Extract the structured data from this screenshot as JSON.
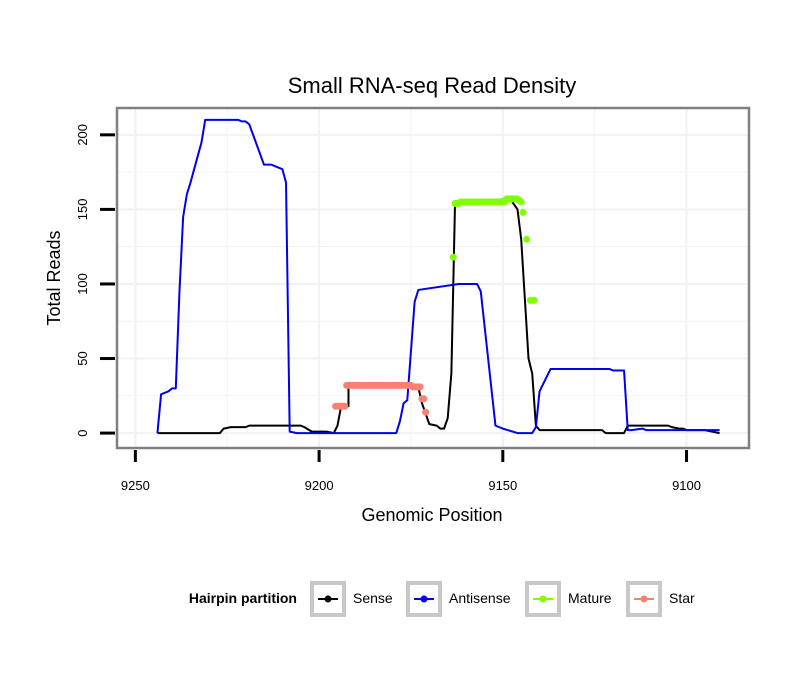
{
  "chart_data": {
    "type": "line",
    "title": "Small RNA-seq Read Density",
    "xlabel": "Genomic Position",
    "ylabel": "Total Reads",
    "xlim": [
      9255,
      9083
    ],
    "ylim": [
      -10,
      218
    ],
    "x_reversed": true,
    "x_ticks": [
      9250,
      9200,
      9150,
      9100
    ],
    "y_ticks": [
      0,
      50,
      100,
      150,
      200
    ],
    "grid": true,
    "legend": {
      "title": "Hairpin partition",
      "position": "bottom",
      "entries": [
        "Sense",
        "Antisense",
        "Mature",
        "Star"
      ]
    },
    "colors": {
      "Sense": "#000000",
      "Antisense": "#0000ee",
      "Mature": "#7fff00",
      "Star": "#fa8072",
      "grid": "#f2f2f2",
      "border": "#808080"
    },
    "series": [
      {
        "name": "Sense",
        "style": "line",
        "x": [
          9244,
          9227,
          9226,
          9224,
          9220,
          9219,
          9205,
          9204,
          9202,
          9198,
          9196,
          9195,
          9194,
          9193,
          9192,
          9192,
          9191,
          9174,
          9173,
          9172,
          9171,
          9170,
          9168,
          9167,
          9166,
          9165,
          9164,
          9163,
          9148,
          9146,
          9145,
          9144,
          9143,
          9142,
          9141,
          9140,
          9139,
          9138,
          9137,
          9136,
          9123,
          9122,
          9117,
          9116,
          9105,
          9104,
          9102,
          9101,
          9100,
          9097,
          9095,
          9091
        ],
        "y": [
          0,
          0,
          3,
          4,
          4,
          5,
          5,
          4,
          1,
          1,
          0,
          5,
          18,
          18,
          18,
          32,
          32,
          32,
          31,
          20,
          13,
          6,
          5,
          3,
          3,
          10,
          40,
          155,
          157,
          150,
          130,
          90,
          50,
          40,
          5,
          2,
          2,
          2,
          2,
          2,
          2,
          0,
          0,
          5,
          5,
          4,
          3,
          3,
          2,
          2,
          2,
          0
        ]
      },
      {
        "name": "Antisense",
        "style": "line",
        "x": [
          9244,
          9243,
          9241,
          9240,
          9239,
          9238,
          9237,
          9236,
          9235,
          9232,
          9231,
          9222,
          9221,
          9220,
          9219,
          9215,
          9214,
          9213,
          9210,
          9209,
          9208,
          9206,
          9205,
          9179,
          9178,
          9177,
          9176,
          9175,
          9174,
          9173,
          9162,
          9161,
          9160,
          9159,
          9157,
          9156,
          9152,
          9151,
          9150,
          9146,
          9145,
          9144,
          9143,
          9142,
          9141,
          9140,
          9138,
          9137,
          9121,
          9120,
          9117,
          9116,
          9115,
          9112,
          9111,
          9108,
          9091
        ],
        "y": [
          0,
          26,
          28,
          30,
          30,
          95,
          145,
          160,
          168,
          195,
          210,
          210,
          209,
          209,
          207,
          180,
          180,
          180,
          177,
          168,
          1,
          0,
          0,
          0,
          8,
          20,
          22,
          55,
          88,
          96,
          100,
          100,
          100,
          100,
          100,
          95,
          5,
          4,
          3,
          0,
          0,
          0,
          0,
          0,
          4,
          28,
          38,
          43,
          43,
          42,
          42,
          2,
          2,
          3,
          2,
          2,
          2
        ]
      },
      {
        "name": "Mature",
        "style": "points",
        "x": [
          9163.5,
          9163,
          9162.5,
          9162,
          9161.5,
          9161,
          9160.5,
          9160,
          9159.5,
          9159,
          9158.5,
          9158,
          9157.5,
          9157,
          9156.5,
          9156,
          9155.5,
          9155,
          9154.5,
          9154,
          9153.5,
          9153,
          9152.5,
          9152,
          9151.5,
          9151,
          9150.5,
          9150,
          9149.5,
          9149,
          9148.5,
          9148,
          9147.5,
          9147,
          9146.5,
          9146,
          9145.5,
          9145,
          9144.5,
          9143.5,
          9142.5,
          9141.5
        ],
        "y": [
          118,
          154,
          154,
          154,
          155,
          155,
          155,
          155,
          155,
          155,
          155,
          155,
          155,
          155,
          155,
          155,
          155,
          155,
          155,
          155,
          155,
          155,
          155,
          155,
          155,
          155,
          155,
          155,
          155,
          157,
          157,
          157,
          157,
          157,
          157,
          157,
          156,
          155,
          148,
          130,
          89,
          89
        ]
      },
      {
        "name": "Star",
        "style": "points",
        "x": [
          9195.5,
          9195,
          9194.5,
          9194,
          9193.5,
          9193,
          9192.5,
          9192,
          9191.5,
          9191,
          9190.5,
          9190,
          9189.5,
          9189,
          9188.5,
          9188,
          9187.5,
          9187,
          9186.5,
          9186,
          9185.5,
          9185,
          9184.5,
          9184,
          9183.5,
          9183,
          9182.5,
          9182,
          9181.5,
          9181,
          9180.5,
          9180,
          9179.5,
          9179,
          9178.5,
          9178,
          9177.5,
          9177,
          9176.5,
          9176,
          9175.5,
          9175,
          9174.5,
          9174,
          9173.5,
          9173,
          9172.5,
          9172,
          9171.5,
          9171
        ],
        "y": [
          18,
          18,
          18,
          18,
          18,
          18,
          32,
          32,
          32,
          32,
          32,
          32,
          32,
          32,
          32,
          32,
          32,
          32,
          32,
          32,
          32,
          32,
          32,
          32,
          32,
          32,
          32,
          32,
          32,
          32,
          32,
          32,
          32,
          32,
          32,
          32,
          32,
          32,
          32,
          32,
          32,
          32,
          31,
          31,
          31,
          31,
          31,
          23,
          23,
          14
        ]
      }
    ]
  }
}
